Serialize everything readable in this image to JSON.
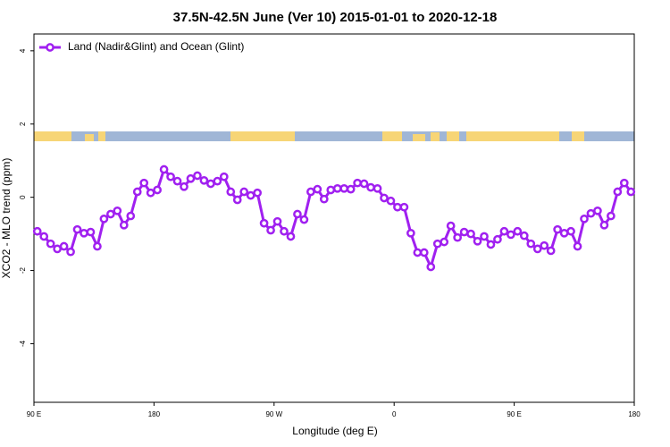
{
  "chart_data": {
    "type": "line",
    "title": "37.5N-42.5N June (Ver 10)   2015-01-01 to 2020-12-18",
    "x_label": "Longitude (deg E)",
    "y_label": "XCO2 - MLO trend (ppm)",
    "xlim": [
      90,
      540
    ],
    "ylim": [
      -5.6,
      4.46
    ],
    "xticks": [
      {
        "value": 90,
        "label": "90 E"
      },
      180,
      {
        "value": 270,
        "label": "90 W"
      },
      {
        "value": 360,
        "label": "0"
      },
      {
        "value": 450,
        "label": "90 E"
      },
      {
        "value": 540,
        "label": "180"
      }
    ],
    "yticks": [
      -4,
      -2,
      0,
      2,
      4
    ],
    "legend": "top-left",
    "x": [
      92.5,
      97.5,
      102.5,
      107.5,
      112.5,
      117.5,
      122.5,
      127.5,
      132.5,
      137.5,
      142.5,
      147.5,
      152.5,
      157.5,
      162.5,
      167.5,
      172.5,
      177.5,
      182.5,
      187.5,
      192.5,
      197.5,
      202.5,
      207.5,
      212.5,
      217.5,
      222.5,
      227.5,
      232.5,
      237.5,
      242.5,
      247.5,
      252.5,
      257.5,
      262.5,
      267.5,
      272.5,
      277.5,
      282.5,
      287.5,
      292.5,
      297.5,
      302.5,
      307.5,
      312.5,
      317.5,
      322.5,
      327.5,
      332.5,
      337.5,
      342.5,
      347.5,
      352.5,
      357.5,
      362.5,
      367.5,
      372.5,
      377.5,
      382.5,
      387.5,
      392.5,
      397.5,
      402.5,
      407.5,
      412.5,
      417.5,
      422.5,
      427.5,
      432.5,
      437.5,
      442.5,
      447.5,
      452.5,
      457.5,
      462.5,
      467.5,
      472.5,
      477.5,
      482.5,
      487.5,
      492.5,
      497.5,
      502.5,
      507.5,
      512.5,
      517.5,
      522.5,
      527.5,
      532.5,
      537.5
    ],
    "series": [
      {
        "name": "Land (Nadir&Glint) and Ocean (Glint)",
        "color": "#a020f0",
        "values": [
          -0.93,
          -1.07,
          -1.27,
          -1.41,
          -1.34,
          -1.49,
          -0.88,
          -0.98,
          -0.95,
          -1.34,
          -0.59,
          -0.46,
          -0.37,
          -0.76,
          -0.51,
          0.15,
          0.39,
          0.12,
          0.2,
          0.76,
          0.56,
          0.44,
          0.29,
          0.51,
          0.59,
          0.46,
          0.37,
          0.44,
          0.56,
          0.15,
          -0.07,
          0.15,
          0.05,
          0.12,
          -0.71,
          -0.9,
          -0.66,
          -0.93,
          -1.07,
          -0.46,
          -0.61,
          0.15,
          0.22,
          -0.05,
          0.2,
          0.24,
          0.24,
          0.22,
          0.39,
          0.37,
          0.27,
          0.24,
          -0.02,
          -0.1,
          -0.27,
          -0.27,
          -0.98,
          -1.51,
          -1.51,
          -1.9,
          -1.27,
          -1.22,
          -0.78,
          -1.1,
          -0.95,
          -1.0,
          -1.2,
          -1.07,
          -1.29,
          -1.15,
          -0.93,
          -1.02,
          -0.93,
          -1.05,
          -1.27,
          -1.41,
          -1.32,
          -1.46,
          -0.88,
          -0.98,
          -0.93,
          -1.34,
          -0.59,
          -0.44,
          -0.37,
          -0.76,
          -0.51,
          0.15,
          0.39,
          0.15
        ]
      }
    ]
  }
}
